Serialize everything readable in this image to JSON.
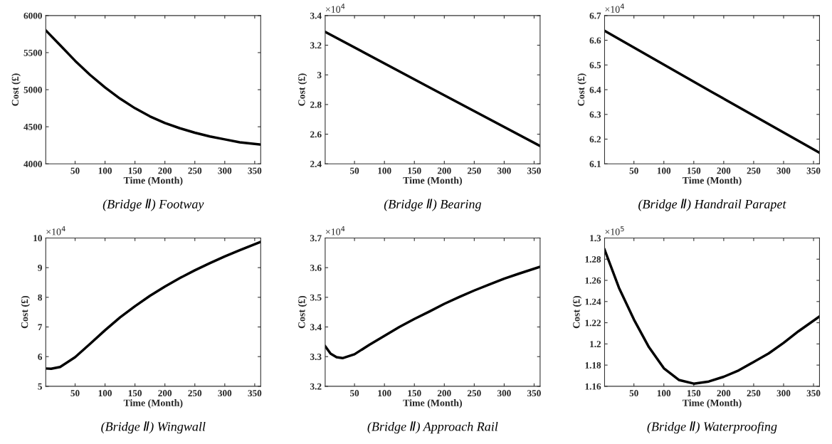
{
  "chart_data": [
    {
      "type": "line",
      "title": "(Bridge Ⅱ) Footway",
      "xlabel": "Time (Month)",
      "ylabel": "Cost (£)",
      "xlim": [
        1,
        360
      ],
      "xticks": [
        50,
        100,
        150,
        200,
        250,
        300,
        350
      ],
      "ylim": [
        4000,
        6000
      ],
      "yticks": [
        4000,
        4500,
        5000,
        5500,
        6000
      ],
      "grid": false,
      "legend": false,
      "series": [
        {
          "color": "#000000",
          "x": [
            1,
            25,
            50,
            75,
            100,
            125,
            150,
            175,
            200,
            225,
            250,
            275,
            300,
            325,
            360
          ],
          "values": [
            5800,
            5600,
            5390,
            5200,
            5030,
            4880,
            4750,
            4640,
            4550,
            4480,
            4420,
            4370,
            4330,
            4290,
            4260
          ]
        }
      ]
    },
    {
      "type": "line",
      "title": "(Bridge Ⅱ) Bearing",
      "xlabel": "Time (Month)",
      "ylabel": "Cost (£)",
      "annotations": [
        "×10$^{4}$"
      ],
      "xlim": [
        1,
        360
      ],
      "xticks": [
        50,
        100,
        150,
        200,
        250,
        300,
        350
      ],
      "ylim": [
        2.4,
        3.4
      ],
      "yticks": [
        2.4,
        2.6,
        2.8,
        3,
        3.2,
        3.4
      ],
      "grid": false,
      "legend": false,
      "series": [
        {
          "color": "#000000",
          "x": [
            1,
            180,
            360
          ],
          "values": [
            3.29,
            2.905,
            2.52
          ]
        }
      ]
    },
    {
      "type": "line",
      "title": "(Bridge Ⅱ) Handrail Parapet",
      "xlabel": "Time (Month)",
      "ylabel": "Cost (£)",
      "annotations": [
        "×10$^{4}$"
      ],
      "xlim": [
        1,
        360
      ],
      "xticks": [
        50,
        100,
        150,
        200,
        250,
        300,
        350
      ],
      "ylim": [
        6.1,
        6.7
      ],
      "yticks": [
        6.1,
        6.2,
        6.3,
        6.4,
        6.5,
        6.6,
        6.7
      ],
      "grid": false,
      "legend": false,
      "series": [
        {
          "color": "#000000",
          "x": [
            1,
            180,
            360
          ],
          "values": [
            6.638,
            6.391,
            6.145
          ]
        }
      ]
    },
    {
      "type": "line",
      "title": "(Bridge Ⅱ) Wingwall",
      "xlabel": "Time (Month)",
      "ylabel": "Cost (£)",
      "annotations": [
        "×10$^{4}$"
      ],
      "xlim": [
        1,
        360
      ],
      "xticks": [
        50,
        100,
        150,
        200,
        250,
        300,
        350
      ],
      "ylim": [
        5,
        10
      ],
      "yticks": [
        5,
        6,
        7,
        8,
        9,
        10
      ],
      "grid": false,
      "legend": false,
      "series": [
        {
          "color": "#000000",
          "x": [
            1,
            10,
            25,
            50,
            75,
            100,
            125,
            150,
            175,
            200,
            225,
            250,
            275,
            300,
            325,
            360
          ],
          "values": [
            5.6,
            5.59,
            5.65,
            5.98,
            6.43,
            6.89,
            7.32,
            7.7,
            8.05,
            8.36,
            8.65,
            8.91,
            9.15,
            9.38,
            9.59,
            9.87
          ]
        }
      ]
    },
    {
      "type": "line",
      "title": "(Bridge Ⅱ) Approach Rail",
      "xlabel": "Time (Month)",
      "ylabel": "Cost (£)",
      "annotations": [
        "×10$^{4}$"
      ],
      "xlim": [
        1,
        360
      ],
      "xticks": [
        50,
        100,
        150,
        200,
        250,
        300,
        350
      ],
      "ylim": [
        3.2,
        3.7
      ],
      "yticks": [
        3.2,
        3.3,
        3.4,
        3.5,
        3.6,
        3.7
      ],
      "grid": false,
      "legend": false,
      "series": [
        {
          "color": "#000000",
          "x": [
            1,
            10,
            20,
            30,
            50,
            75,
            100,
            125,
            150,
            175,
            200,
            225,
            250,
            275,
            300,
            325,
            360
          ],
          "values": [
            3.335,
            3.31,
            3.298,
            3.295,
            3.308,
            3.34,
            3.37,
            3.4,
            3.427,
            3.452,
            3.478,
            3.501,
            3.523,
            3.543,
            3.563,
            3.58,
            3.603
          ]
        }
      ]
    },
    {
      "type": "line",
      "title": "(Bridge Ⅱ) Waterproofing",
      "xlabel": "Time (Month)",
      "ylabel": "Cost (£)",
      "annotations": [
        "×10$^{5}$"
      ],
      "xlim": [
        1,
        360
      ],
      "xticks": [
        50,
        100,
        150,
        200,
        250,
        300,
        350
      ],
      "ylim": [
        1.16,
        1.3
      ],
      "yticks": [
        1.16,
        1.18,
        1.2,
        1.22,
        1.24,
        1.26,
        1.28,
        1.3
      ],
      "grid": false,
      "legend": false,
      "series": [
        {
          "color": "#000000",
          "x": [
            1,
            25,
            50,
            75,
            100,
            125,
            150,
            175,
            200,
            225,
            250,
            275,
            300,
            325,
            360
          ],
          "values": [
            1.289,
            1.253,
            1.223,
            1.197,
            1.177,
            1.166,
            1.1625,
            1.1645,
            1.169,
            1.175,
            1.183,
            1.191,
            1.201,
            1.212,
            1.226
          ]
        }
      ]
    }
  ]
}
